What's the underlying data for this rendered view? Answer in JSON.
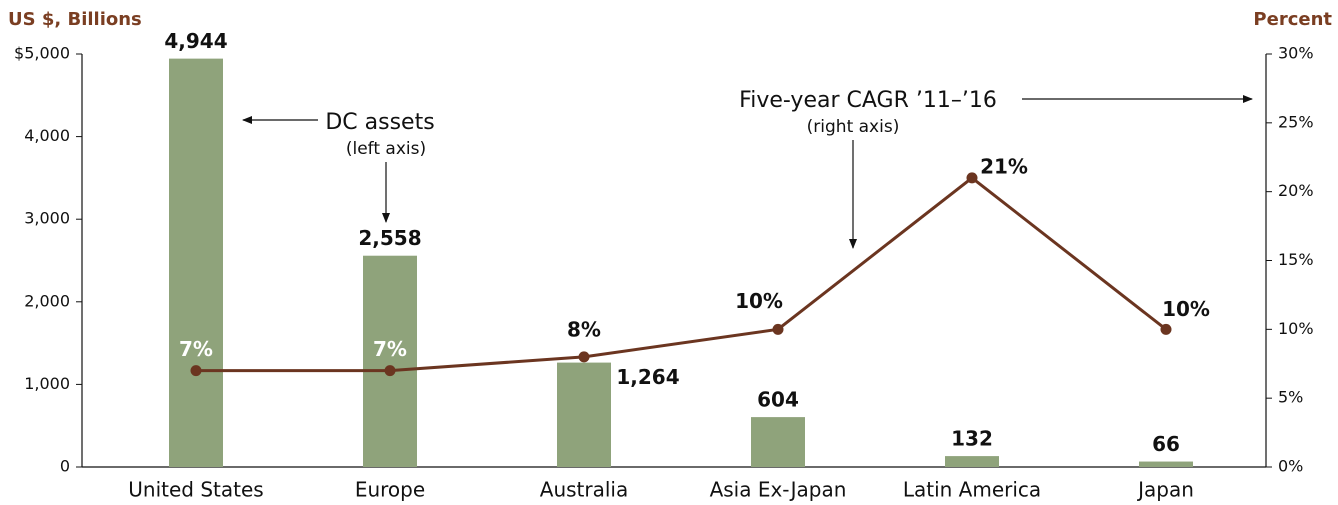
{
  "chart_data": {
    "type": "combo",
    "y_label": "US $, Billions",
    "y2_label": "Percent",
    "categories": [
      "United States",
      "Europe",
      "Australia",
      "Asia Ex-Japan",
      "Latin America",
      "Japan"
    ],
    "series": [
      {
        "type": "bar",
        "color": "#8fa37b",
        "values": [
          4944,
          2558,
          1264,
          604,
          132,
          66
        ],
        "value_labels": [
          "4,944",
          "2,558",
          "1,264",
          "604",
          "132",
          "66"
        ]
      },
      {
        "type": "line",
        "axis": "y2",
        "color": "#6b3520",
        "values": [
          7,
          7,
          8,
          10,
          21,
          10
        ],
        "value_labels": [
          "7%",
          "7%",
          "8%",
          "10%",
          "21%",
          "10%"
        ]
      }
    ],
    "ylim": [
      0,
      5000
    ],
    "yticks": [
      0,
      {
        "value": 1000,
        "label": "1,000"
      },
      {
        "value": 2000,
        "label": "2,000"
      },
      {
        "value": 3000,
        "label": "3,000"
      },
      {
        "value": 4000,
        "label": "4,000"
      },
      {
        "value": 5000,
        "label": "$5,000"
      }
    ],
    "y2lim": [
      0,
      30
    ],
    "y2ticks": [
      {
        "value": 0,
        "label": "0%"
      },
      {
        "value": 5,
        "label": "5%"
      },
      {
        "value": 10,
        "label": "10%"
      },
      {
        "value": 15,
        "label": "15%"
      },
      {
        "value": 20,
        "label": "20%"
      },
      {
        "value": 25,
        "label": "25%"
      },
      {
        "value": 30,
        "label": "30%"
      }
    ],
    "annotations": [
      "DC assets",
      "(left axis)",
      "Five-year CAGR ’11–’16",
      "(right axis)"
    ]
  }
}
